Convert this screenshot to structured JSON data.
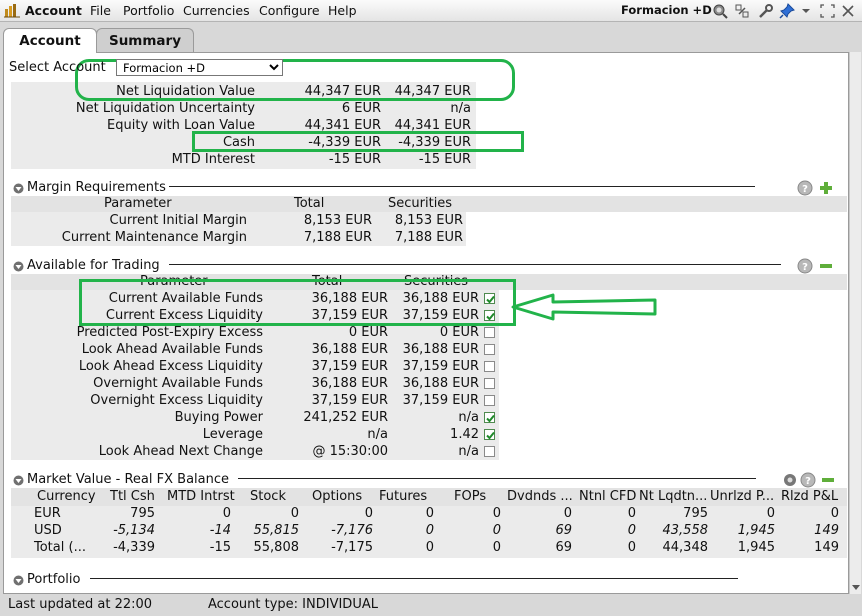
{
  "app": {
    "title": "Account",
    "menu": [
      "File",
      "Portfolio",
      "Currencies",
      "Configure",
      "Help"
    ],
    "account_name": "Formacion +D",
    "toolbar_icons": [
      "search-icon",
      "link-icon",
      "wrench-icon",
      "pin-icon",
      "chevron-down-icon",
      "restore-icon",
      "close-icon"
    ]
  },
  "tabs": [
    "Account",
    "Summary"
  ],
  "select_account": {
    "label": "Select Account",
    "value": "Formacion +D"
  },
  "balances": [
    {
      "label": "Net Liquidation Value",
      "total": "44,347 EUR",
      "sec": "44,347 EUR"
    },
    {
      "label": "Net Liquidation Uncertainty",
      "total": "6 EUR",
      "sec": "n/a"
    },
    {
      "label": "Equity with Loan Value",
      "total": "44,341 EUR",
      "sec": "44,341 EUR"
    },
    {
      "label": "Cash",
      "total": "-4,339 EUR",
      "sec": "-4,339 EUR"
    },
    {
      "label": "MTD Interest",
      "total": "-15 EUR",
      "sec": "-15 EUR"
    }
  ],
  "margin": {
    "title": "Margin Requirements",
    "headers": [
      "Parameter",
      "Total",
      "Securities"
    ],
    "rows": [
      {
        "label": "Current Initial Margin",
        "total": "8,153 EUR",
        "sec": "8,153 EUR"
      },
      {
        "label": "Current Maintenance Margin",
        "total": "7,188 EUR",
        "sec": "7,188 EUR"
      }
    ]
  },
  "trading": {
    "title": "Available for Trading",
    "headers": [
      "Parameter",
      "Total",
      "Securities"
    ],
    "rows": [
      {
        "label": "Current Available Funds",
        "total": "36,188 EUR",
        "sec": "36,188 EUR",
        "checked": true
      },
      {
        "label": "Current Excess Liquidity",
        "total": "37,159 EUR",
        "sec": "37,159 EUR",
        "checked": true
      },
      {
        "label": "Predicted Post-Expiry Excess",
        "total": "0 EUR",
        "sec": "0 EUR",
        "checked": false
      },
      {
        "label": "Look Ahead Available Funds",
        "total": "36,188 EUR",
        "sec": "36,188 EUR",
        "checked": false
      },
      {
        "label": "Look Ahead Excess Liquidity",
        "total": "37,159 EUR",
        "sec": "37,159 EUR",
        "checked": false
      },
      {
        "label": "Overnight Available Funds",
        "total": "36,188 EUR",
        "sec": "36,188 EUR",
        "checked": false
      },
      {
        "label": "Overnight Excess Liquidity",
        "total": "37,159 EUR",
        "sec": "37,159 EUR",
        "checked": false
      },
      {
        "label": "Buying Power",
        "total": "241,252 EUR",
        "sec": "n/a",
        "checked": true
      },
      {
        "label": "Leverage",
        "total": "n/a",
        "sec": "1.42",
        "checked": true
      },
      {
        "label": "Look Ahead Next Change",
        "total": "@ 15:30:00",
        "sec": "n/a",
        "checked": false
      }
    ]
  },
  "market_value": {
    "title": "Market Value - Real FX Balance",
    "headers": [
      "Currency",
      "Ttl Csh",
      "MTD Intrst",
      "Stock",
      "Options",
      "Futures",
      "FOPs",
      "Dvdnds ...",
      "Ntnl CFD",
      "Nt Lqdtn...",
      "Unrlzd P...",
      "Rlzd P&L"
    ],
    "rows": [
      [
        "EUR",
        "795",
        "0",
        "0",
        "0",
        "0",
        "0",
        "0",
        "0",
        "795",
        "0",
        "0"
      ],
      [
        "USD",
        "-5,134",
        "-14",
        "55,815",
        "-7,176",
        "0",
        "0",
        "69",
        "0",
        "43,558",
        "1,945",
        "149"
      ],
      [
        "Total (...",
        "-4,339",
        "-15",
        "55,808",
        "-7,175",
        "0",
        "0",
        "69",
        "0",
        "44,348",
        "1,945",
        "149"
      ]
    ]
  },
  "portfolio": {
    "title": "Portfolio"
  },
  "status": {
    "updated": "Last updated at 22:00",
    "account_type": "Account type: INDIVIDUAL"
  },
  "colors": {
    "annotation": "#22b34a",
    "band": "#ebebeb",
    "header": "#e3e3e3"
  }
}
